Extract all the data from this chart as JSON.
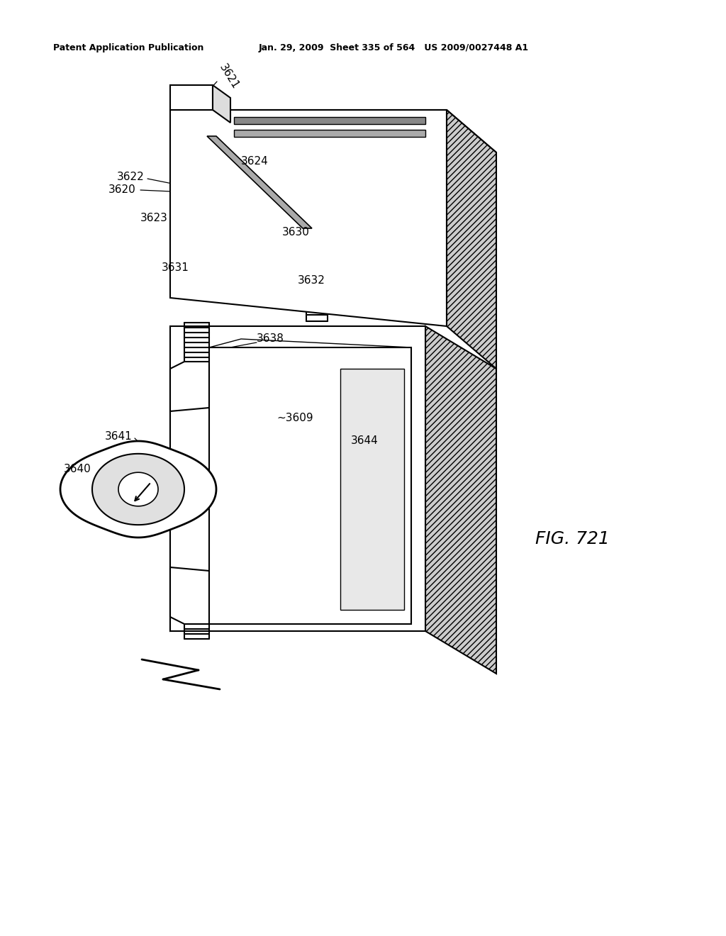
{
  "header_left": "Patent Application Publication",
  "header_middle": "Jan. 29, 2009  Sheet 335 of 564   US 2009/0027448 A1",
  "figure_label": "FIG. 721",
  "background_color": "#ffffff",
  "line_color": "#000000",
  "hatch_color": "#000000"
}
